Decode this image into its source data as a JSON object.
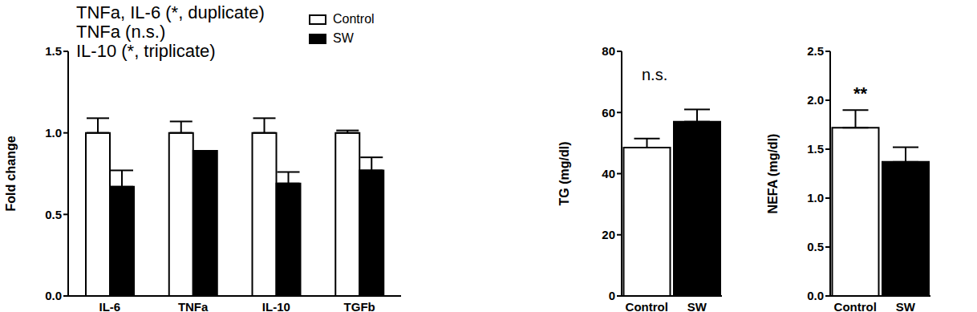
{
  "chart_data": [
    {
      "type": "bar",
      "y_label": "Fold change",
      "categories": [
        "IL-6",
        "TNFa",
        "IL-10",
        "TGFb"
      ],
      "series": [
        {
          "name": "Control",
          "color": "#ffffff",
          "values": [
            1,
            1,
            1,
            1
          ],
          "errors": [
            0.09,
            0.07,
            0.09,
            0.015
          ]
        },
        {
          "name": "SW",
          "color": "#000000",
          "values": [
            0.67,
            0.89,
            0.69,
            0.77
          ],
          "errors": [
            0.1,
            0,
            0.07,
            0.08
          ]
        }
      ],
      "ylim": [
        0,
        1.5
      ],
      "yticks": [
        {
          "value": 0,
          "label": "0.0"
        },
        0.5,
        {
          "value": 1,
          "label": "1.0"
        },
        1.5
      ],
      "legend": "top-right",
      "annotations": [
        "TNFa, IL-6 (*, duplicate)",
        "TNFa (n.s.)",
        "IL-10 (*, triplicate)"
      ]
    },
    {
      "type": "bar",
      "y_label": "TG (mg/dl)",
      "categories": [
        "Control",
        "SW"
      ],
      "values": [
        48.5,
        57
      ],
      "errors": [
        3,
        4
      ],
      "colors": [
        "#ffffff",
        "#000000"
      ],
      "ylim": [
        0,
        80
      ],
      "yticks": [
        0,
        20,
        40,
        60,
        80
      ],
      "annotations": [
        "n.s."
      ]
    },
    {
      "type": "bar",
      "y_label": "NEFA (mg/dl)",
      "categories": [
        "Control",
        "SW"
      ],
      "values": [
        1.72,
        1.37
      ],
      "errors": [
        0.18,
        0.15
      ],
      "colors": [
        "#ffffff",
        "#000000"
      ],
      "ylim": [
        0,
        2.5
      ],
      "yticks": [
        {
          "value": 0,
          "label": "0.0"
        },
        0.5,
        {
          "value": 1,
          "label": "1.0"
        },
        1.5,
        {
          "value": 2,
          "label": "2.0"
        },
        2.5
      ],
      "annotations": [
        "**"
      ]
    }
  ]
}
